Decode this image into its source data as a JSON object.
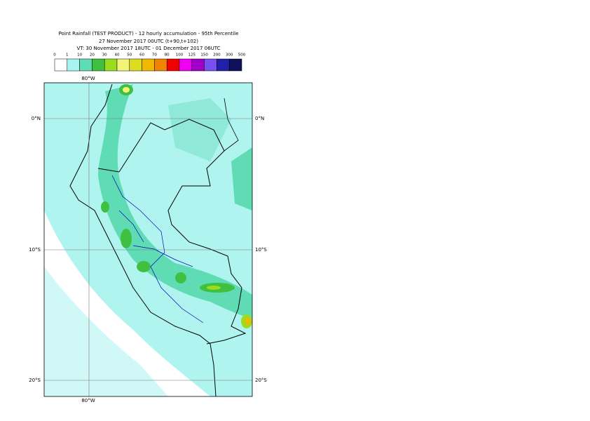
{
  "header": {
    "title": "Point Rainfall (TEST PRODUCT) - 12 hourly accumulation - 95th Percentile",
    "base_time": "27 November 2017 00UTC (t+90,t+102)",
    "valid_time": "VT: 30 November 2017 18UTC - 01 December 2017 06UTC"
  },
  "legend": {
    "labels": [
      0,
      1,
      10,
      20,
      30,
      40,
      50,
      60,
      70,
      80,
      100,
      125,
      150,
      200,
      300,
      500
    ],
    "colors": [
      "#ffffff",
      "#a8f4f0",
      "#60dcb4",
      "#40c040",
      "#9cdc20",
      "#f0f478",
      "#dcdc20",
      "#f0b800",
      "#f08400",
      "#f00000",
      "#f000f0",
      "#a000c8",
      "#7850f0",
      "#2020a8",
      "#10105a"
    ]
  },
  "map": {
    "lon_label": "80°W",
    "lat_labels": [
      "0°N",
      "10°S",
      "20°S"
    ]
  }
}
